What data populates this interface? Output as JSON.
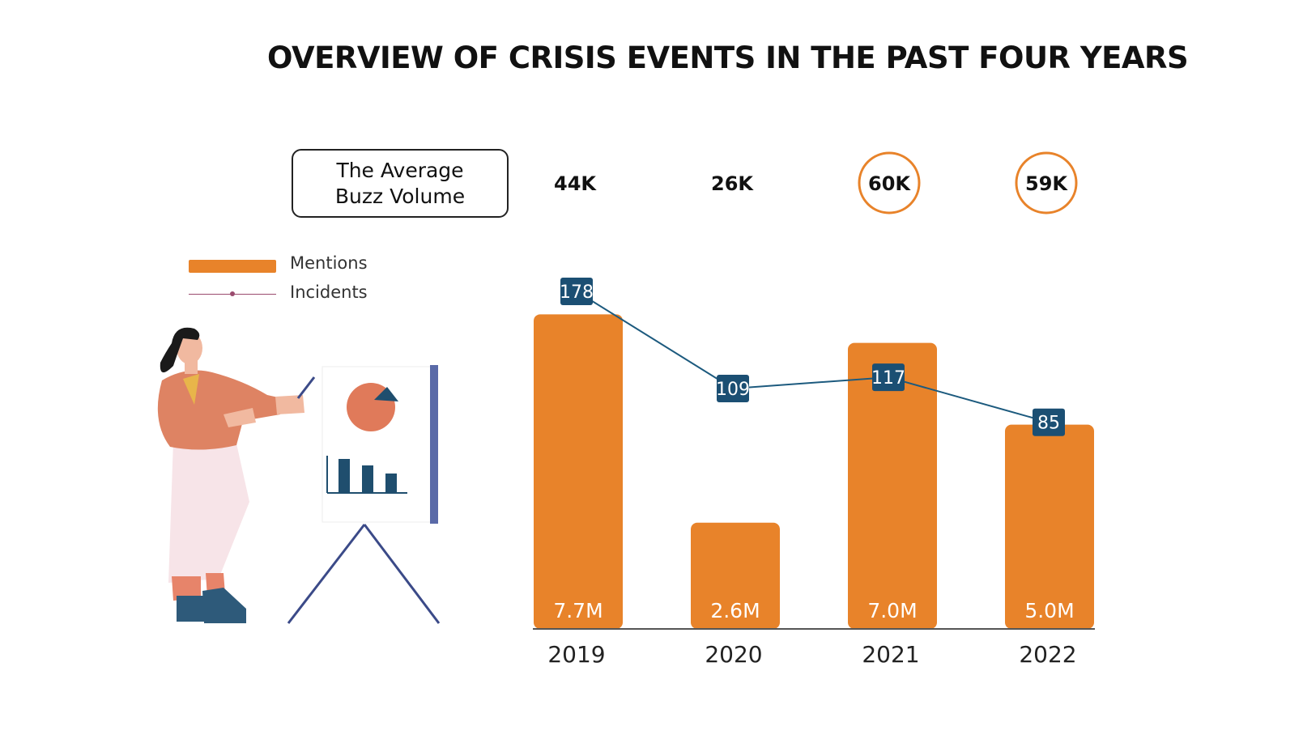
{
  "title": "OVERVIEW OF CRISIS EVENTS IN THE PAST FOUR YEARS",
  "buzz_box": {
    "line1": "The Average",
    "line2": "Buzz Volume"
  },
  "legend": {
    "mentions": "Mentions",
    "incidents": "Incidents"
  },
  "colors": {
    "bar": "#e8832a",
    "line": "#1c5a7e",
    "label_box": "#1b4f73",
    "circle": "#e8832a",
    "axis": "#555555"
  },
  "chart_data": {
    "type": "bar",
    "categories": [
      "2019",
      "2020",
      "2021",
      "2022"
    ],
    "series": [
      {
        "name": "Mentions",
        "type": "bar",
        "values": [
          7.7,
          2.6,
          7.0,
          5.0
        ],
        "labels": [
          "7.7M",
          "2.6M",
          "7.0M",
          "5.0M"
        ]
      },
      {
        "name": "Incidents",
        "type": "line",
        "values": [
          178,
          109,
          117,
          85
        ],
        "labels": [
          "178",
          "109",
          "117",
          "85"
        ]
      }
    ],
    "buzz_volume": {
      "labels": [
        "44K",
        "26K",
        "60K",
        "59K"
      ],
      "highlighted": [
        false,
        false,
        true,
        true
      ]
    },
    "title": "OVERVIEW OF CRISIS EVENTS IN THE PAST FOUR YEARS",
    "ylim_mentions": [
      0,
      10.5
    ],
    "ylim_incidents": [
      0,
      230
    ]
  }
}
